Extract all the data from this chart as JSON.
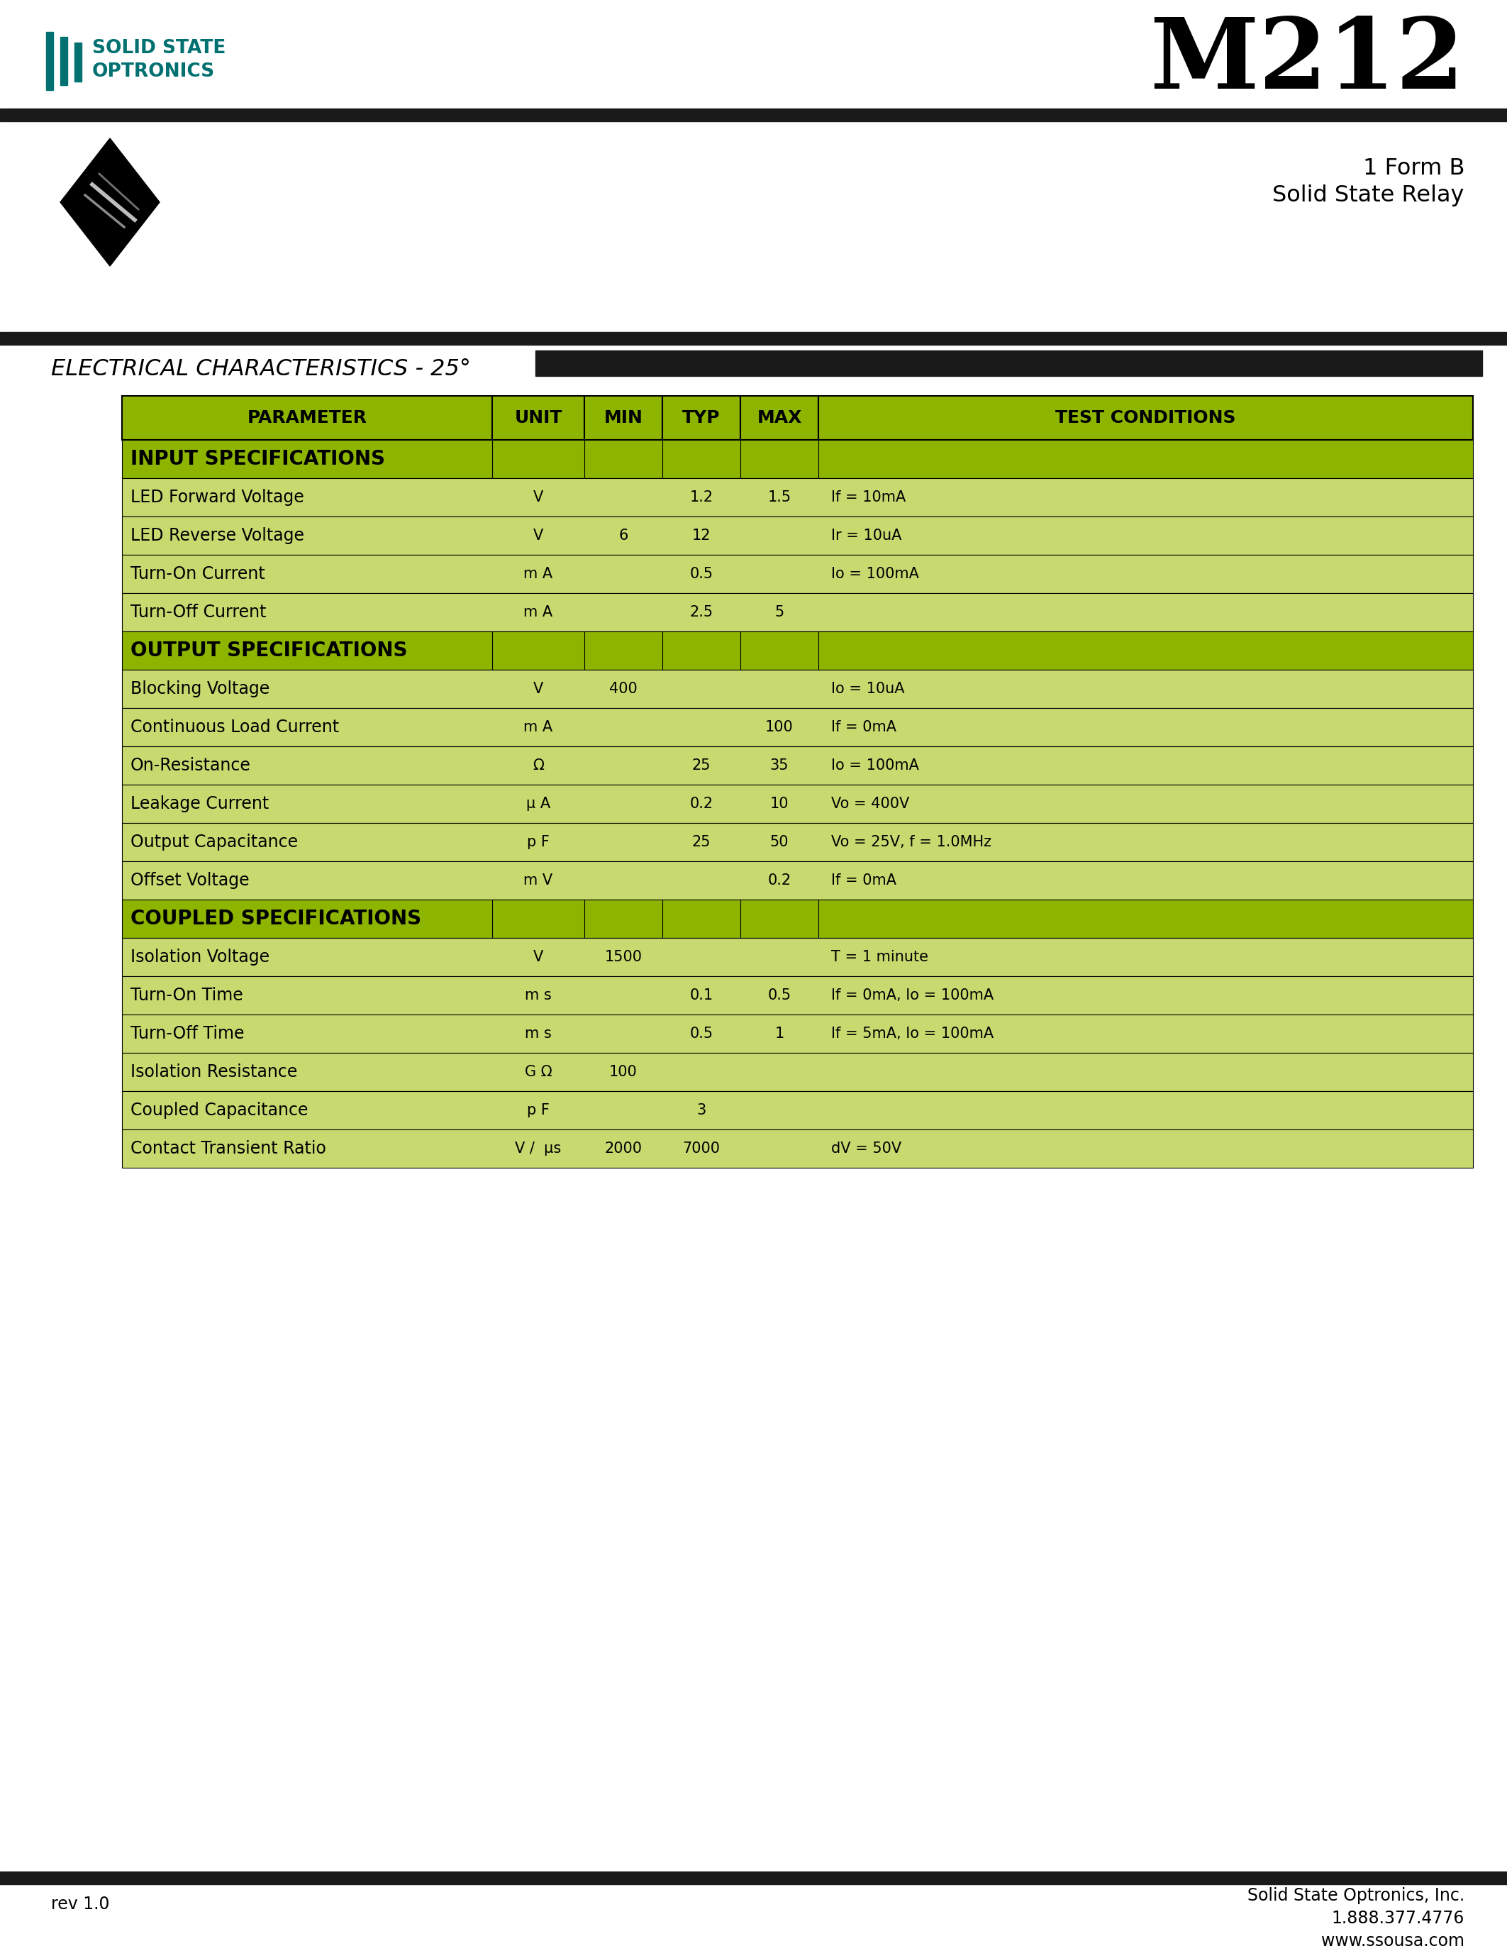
{
  "title": "M212",
  "subtitle1": "1 Form B",
  "subtitle2": "Solid State Relay",
  "ec_title": "ELECTRICAL CHARACTERISTICS - 25°",
  "header_row": [
    "PARAMETER",
    "UNIT",
    "MIN",
    "TYP",
    "MAX",
    "TEST CONDITIONS"
  ],
  "rows": [
    {
      "param": "INPUT SPECIFICATIONS",
      "unit": "",
      "min": "",
      "typ": "",
      "max": "",
      "cond": "",
      "type": "section"
    },
    {
      "param": "LED Forward Voltage",
      "unit": "V",
      "min": "",
      "typ": "1.2",
      "max": "1.5",
      "cond": "If = 10mA",
      "type": "data"
    },
    {
      "param": "LED Reverse Voltage",
      "unit": "V",
      "min": "6",
      "typ": "12",
      "max": "",
      "cond": "Ir = 10uA",
      "type": "data"
    },
    {
      "param": "Turn-On Current",
      "unit": "m A",
      "min": "",
      "typ": "0.5",
      "max": "",
      "cond": "Io = 100mA",
      "type": "data"
    },
    {
      "param": "Turn-Off Current",
      "unit": "m A",
      "min": "",
      "typ": "2.5",
      "max": "5",
      "cond": "",
      "type": "data"
    },
    {
      "param": "OUTPUT SPECIFICATIONS",
      "unit": "",
      "min": "",
      "typ": "",
      "max": "",
      "cond": "",
      "type": "section"
    },
    {
      "param": "Blocking Voltage",
      "unit": "V",
      "min": "400",
      "typ": "",
      "max": "",
      "cond": "Io = 10uA",
      "type": "data"
    },
    {
      "param": "Continuous Load Current",
      "unit": "m A",
      "min": "",
      "typ": "",
      "max": "100",
      "cond": "If = 0mA",
      "type": "data"
    },
    {
      "param": "On-Resistance",
      "unit": "Ω",
      "min": "",
      "typ": "25",
      "max": "35",
      "cond": "Io = 100mA",
      "type": "data"
    },
    {
      "param": "Leakage Current",
      "unit": "μ A",
      "min": "",
      "typ": "0.2",
      "max": "10",
      "cond": "Vo = 400V",
      "type": "data"
    },
    {
      "param": "Output Capacitance",
      "unit": "p F",
      "min": "",
      "typ": "25",
      "max": "50",
      "cond": "Vo = 25V, f = 1.0MHz",
      "type": "data"
    },
    {
      "param": "Offset Voltage",
      "unit": "m V",
      "min": "",
      "typ": "",
      "max": "0.2",
      "cond": "If = 0mA",
      "type": "data"
    },
    {
      "param": "COUPLED SPECIFICATIONS",
      "unit": "",
      "min": "",
      "typ": "",
      "max": "",
      "cond": "",
      "type": "section"
    },
    {
      "param": "Isolation Voltage",
      "unit": "V",
      "min": "1500",
      "typ": "",
      "max": "",
      "cond": "T = 1 minute",
      "type": "data"
    },
    {
      "param": "Turn-On Time",
      "unit": "m s",
      "min": "",
      "typ": "0.1",
      "max": "0.5",
      "cond": "If = 0mA, Io = 100mA",
      "type": "data"
    },
    {
      "param": "Turn-Off Time",
      "unit": "m s",
      "min": "",
      "typ": "0.5",
      "max": "1",
      "cond": "If = 5mA, Io = 100mA",
      "type": "data"
    },
    {
      "param": "Isolation Resistance",
      "unit": "G Ω",
      "min": "100",
      "typ": "",
      "max": "",
      "cond": "",
      "type": "data"
    },
    {
      "param": "Coupled Capacitance",
      "unit": "p F",
      "min": "",
      "typ": "3",
      "max": "",
      "cond": "",
      "type": "data"
    },
    {
      "param": "Contact Transient Ratio",
      "unit": "V /  μs",
      "min": "2000",
      "typ": "7000",
      "max": "",
      "cond": "dV = 50V",
      "type": "data"
    }
  ],
  "footer_rev": "rev 1.0",
  "footer_company": "Solid State Optronics, Inc.",
  "footer_phone": "1.888.377.4776",
  "footer_web": "www.ssousa.com",
  "teal_color": "#007070",
  "black_bar_color": "#1a1a1a",
  "green_header": "#8db500",
  "light_green": "#c8d96f"
}
